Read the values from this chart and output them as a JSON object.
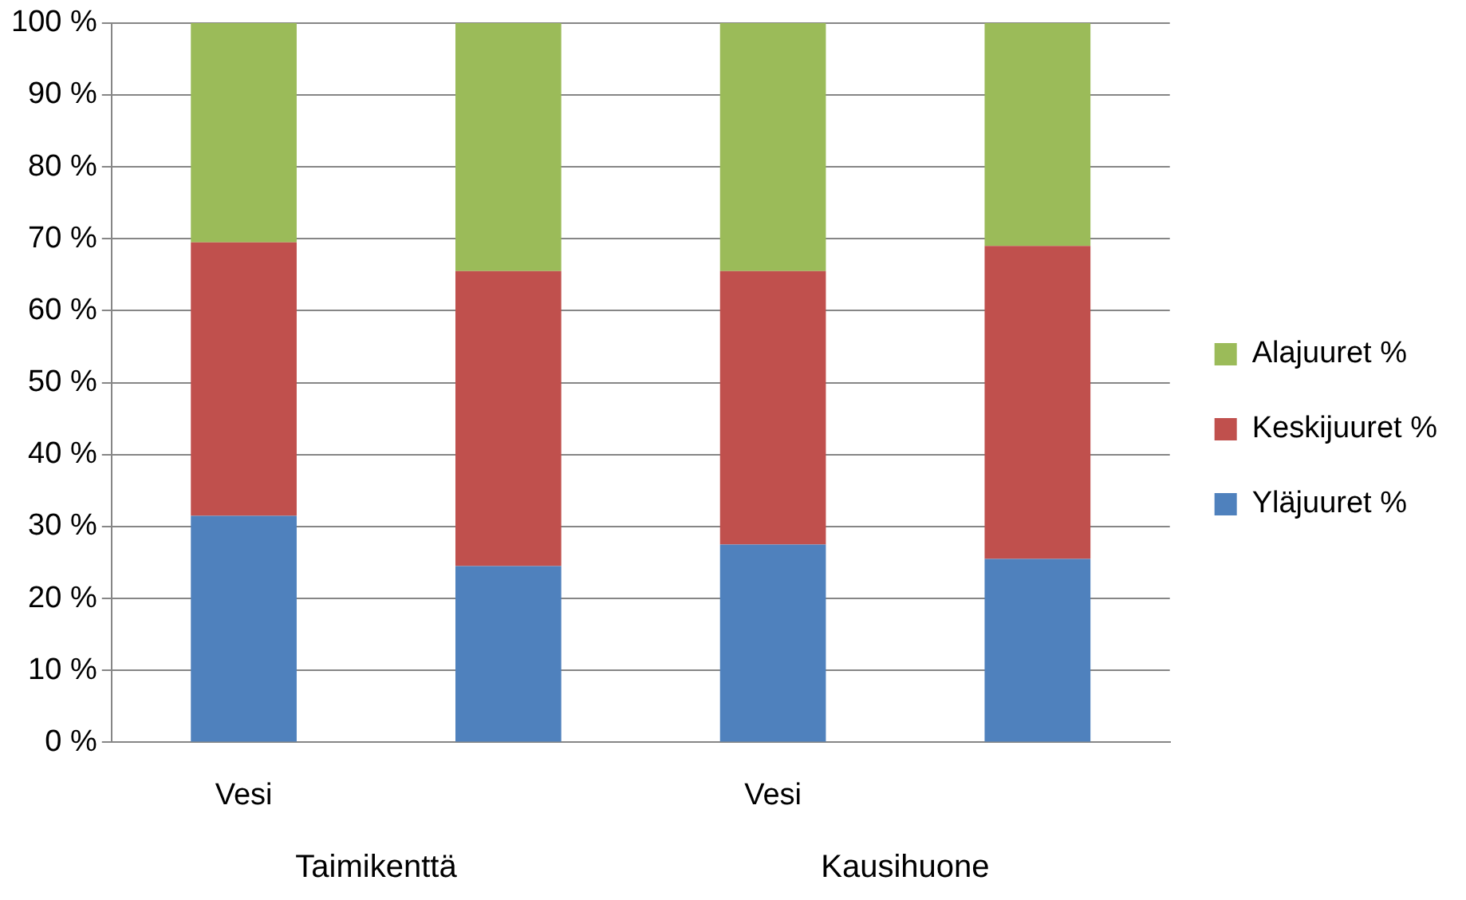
{
  "chart_data": {
    "type": "bar",
    "stacked": true,
    "categories": [
      "Vesi",
      null,
      "Vesi",
      null
    ],
    "series": [
      {
        "name": "Yläjuuret %",
        "color": "#4f81bd",
        "values": [
          31.5,
          24.5,
          27.5,
          25.5
        ]
      },
      {
        "name": "Keskijuuret %",
        "color": "#c0504d",
        "values": [
          38,
          41,
          38,
          43.5
        ]
      },
      {
        "name": "Alajuuret %",
        "color": "#9bbb59",
        "values": [
          30.5,
          34.5,
          34.5,
          31
        ]
      }
    ],
    "ylim": [
      0,
      100
    ],
    "yticks": [
      {
        "value": 0,
        "label": "0 %"
      },
      {
        "value": 10,
        "label": "10 %"
      },
      {
        "value": 20,
        "label": "20 %"
      },
      {
        "value": 30,
        "label": "30 %"
      },
      {
        "value": 40,
        "label": "40 %"
      },
      {
        "value": 50,
        "label": "50 %"
      },
      {
        "value": 60,
        "label": "60 %"
      },
      {
        "value": 70,
        "label": "70 %"
      },
      {
        "value": 80,
        "label": "80 %"
      },
      {
        "value": 90,
        "label": "90 %"
      },
      {
        "value": 100,
        "label": "100 %"
      }
    ],
    "grid": "y",
    "legend": "right",
    "annotations": [
      "Taimikenttä",
      "Kausihuone"
    ]
  }
}
